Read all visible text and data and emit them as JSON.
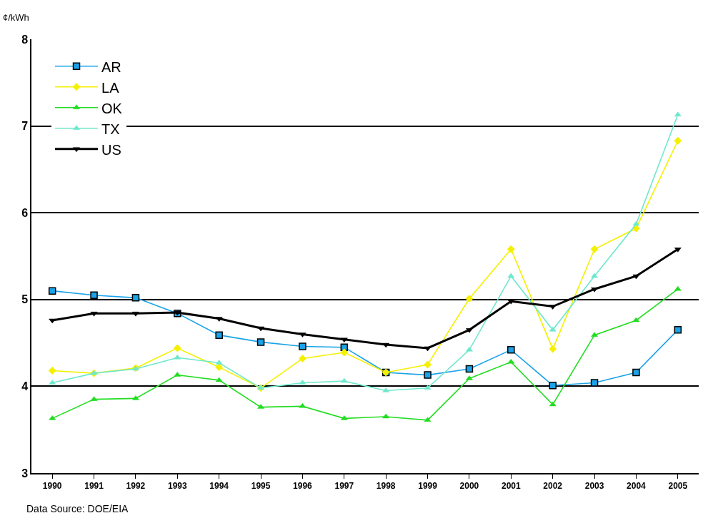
{
  "chart_data": {
    "type": "line",
    "ylabel": "¢/kWh",
    "categories": [
      "1990",
      "1991",
      "1992",
      "1993",
      "1994",
      "1995",
      "1996",
      "1997",
      "1998",
      "1999",
      "2000",
      "2001",
      "2002",
      "2003",
      "2004",
      "2005"
    ],
    "series": [
      {
        "name": "AR",
        "color": "#1aa3e8",
        "marker": "square",
        "values": [
          5.1,
          5.05,
          5.02,
          4.84,
          4.59,
          4.51,
          4.46,
          4.45,
          4.16,
          4.13,
          4.2,
          4.42,
          4.01,
          4.04,
          4.16,
          4.65
        ]
      },
      {
        "name": "LA",
        "color": "#f5f000",
        "marker": "diamond",
        "values": [
          4.18,
          4.15,
          4.21,
          4.44,
          4.22,
          3.98,
          4.32,
          4.39,
          4.16,
          4.25,
          5.01,
          5.58,
          4.43,
          5.58,
          5.82,
          6.83
        ]
      },
      {
        "name": "OK",
        "color": "#22dd22",
        "marker": "triangle",
        "values": [
          3.63,
          3.85,
          3.86,
          4.13,
          4.07,
          3.76,
          3.77,
          3.63,
          3.65,
          3.61,
          4.09,
          4.28,
          3.79,
          4.59,
          4.76,
          5.12
        ]
      },
      {
        "name": "TX",
        "color": "#6ee8cc",
        "marker": "triangle",
        "values": [
          4.04,
          4.15,
          4.2,
          4.33,
          4.27,
          3.98,
          4.04,
          4.06,
          3.95,
          3.98,
          4.42,
          5.27,
          4.65,
          5.27,
          5.87,
          7.13
        ]
      },
      {
        "name": "US",
        "color": "#000000",
        "marker": "triangle-down",
        "values": [
          4.76,
          4.84,
          4.84,
          4.85,
          4.78,
          4.67,
          4.6,
          4.54,
          4.48,
          4.44,
          4.65,
          4.98,
          4.92,
          5.12,
          5.27,
          5.58
        ]
      }
    ],
    "ylim": [
      3,
      8
    ],
    "yticks": [
      3,
      4,
      5,
      6,
      7,
      8
    ],
    "grid": "y",
    "legend": "top left",
    "line_style": "solid",
    "annotations": [
      "Data Source: DOE/EIA"
    ]
  }
}
